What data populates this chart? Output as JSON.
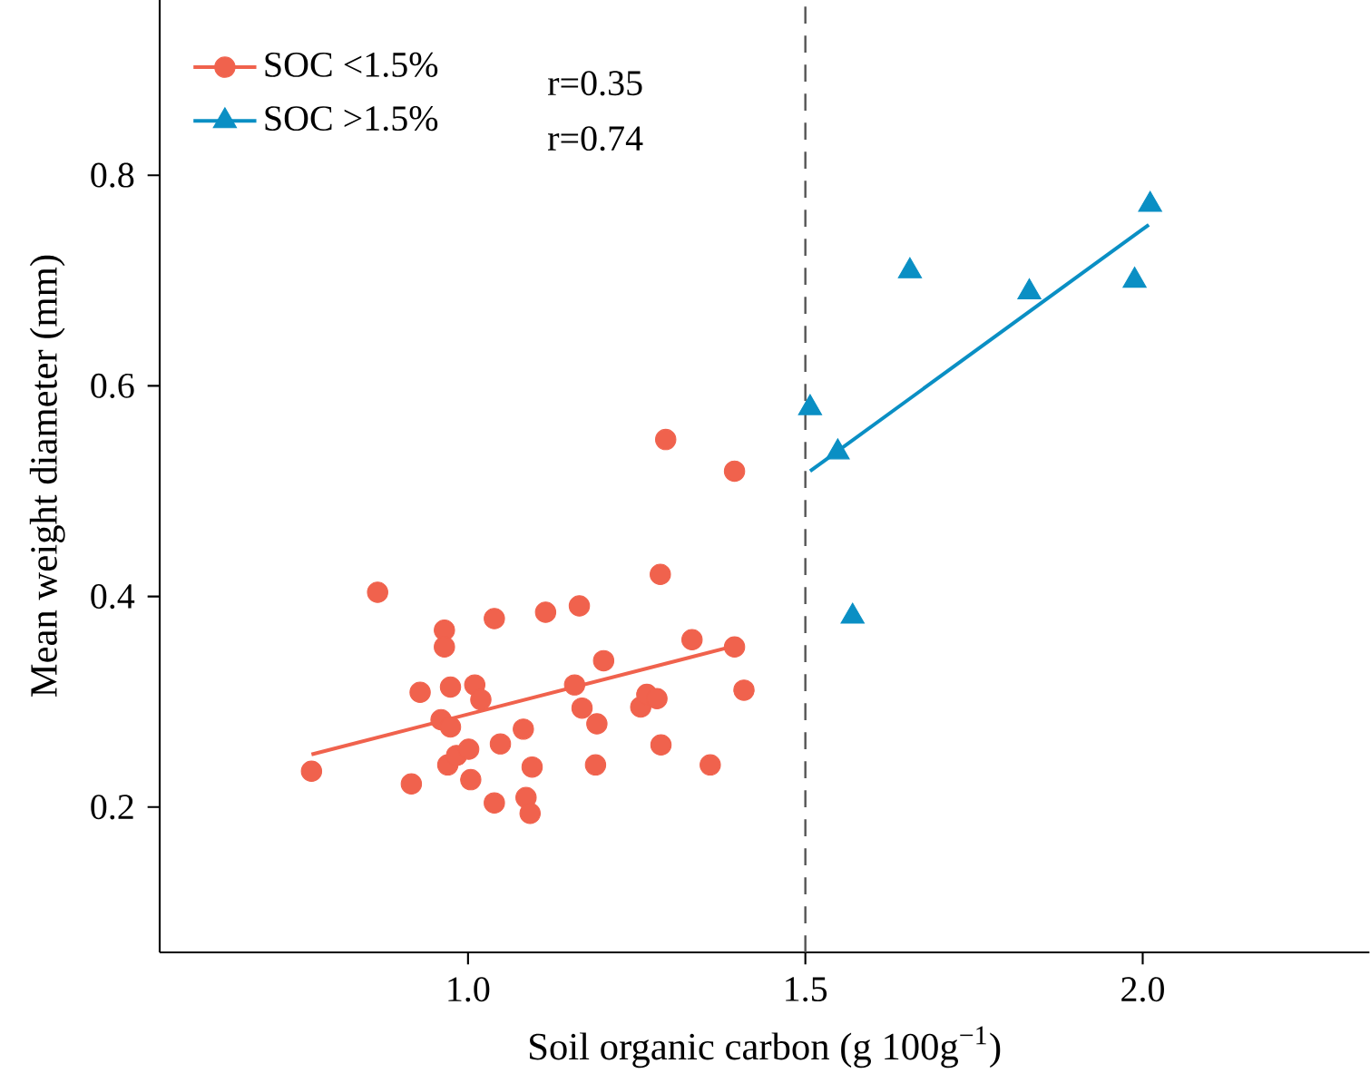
{
  "chart_data": {
    "type": "scatter",
    "xlabel": "Soil organic carbon (g 100g$^{−1}$)",
    "ylabel": "Mean weight diameter (mm)",
    "xlim": [
      0.543,
      2.336
    ],
    "ylim": [
      0.062,
      0.967
    ],
    "xticks": [
      {
        "value": 1.0,
        "label": "1.0"
      },
      1.5,
      {
        "value": 2.0,
        "label": "2.0"
      }
    ],
    "yticks": [
      0.2,
      0.4,
      0.6,
      0.8
    ],
    "legend": "top left",
    "annotations": [
      "r=0.35",
      "r=0.74"
    ],
    "ref_lines": [
      {
        "axis": "x",
        "value": 1.5,
        "color": "#555555",
        "line_style": "dashed"
      }
    ],
    "series": [
      {
        "name": "SOC <1.5%",
        "marker": "circle",
        "color": "#f0624d",
        "x": [
          0.768,
          0.866,
          0.916,
          0.929,
          0.965,
          0.965,
          0.974,
          0.96,
          0.974,
          0.97,
          0.983,
          1.001,
          1.004,
          1.01,
          1.019,
          1.039,
          1.039,
          1.048,
          1.082,
          1.086,
          1.092,
          1.095,
          1.115,
          1.158,
          1.165,
          1.169,
          1.191,
          1.189,
          1.201,
          1.256,
          1.265,
          1.28,
          1.286,
          1.285,
          1.332,
          1.359,
          1.395,
          1.409,
          1.293,
          1.395
        ],
        "values": [
          0.234,
          0.404,
          0.222,
          0.309,
          0.368,
          0.352,
          0.314,
          0.283,
          0.276,
          0.24,
          0.249,
          0.255,
          0.226,
          0.316,
          0.302,
          0.379,
          0.204,
          0.26,
          0.274,
          0.209,
          0.194,
          0.238,
          0.385,
          0.316,
          0.391,
          0.294,
          0.279,
          0.24,
          0.339,
          0.295,
          0.307,
          0.303,
          0.259,
          0.421,
          0.359,
          0.24,
          0.352,
          0.311,
          0.549,
          0.519
        ]
      },
      {
        "name": "SOC >1.5%",
        "marker": "triangle",
        "color": "#0a8fc4",
        "x": [
          2.011,
          1.655,
          1.832,
          1.988,
          1.507,
          1.548,
          1.57
        ],
        "values": [
          0.772,
          0.709,
          0.689,
          0.7,
          0.579,
          0.537,
          0.381
        ]
      },
      {
        "type": "line",
        "marker": "none",
        "color": "#f0624d",
        "x": [
          0.768,
          1.395
        ],
        "values": [
          0.25,
          0.353
        ]
      },
      {
        "type": "line",
        "marker": "none",
        "color": "#0a8fc4",
        "x": [
          1.507,
          2.009
        ],
        "values": [
          0.519,
          0.753
        ]
      }
    ]
  }
}
